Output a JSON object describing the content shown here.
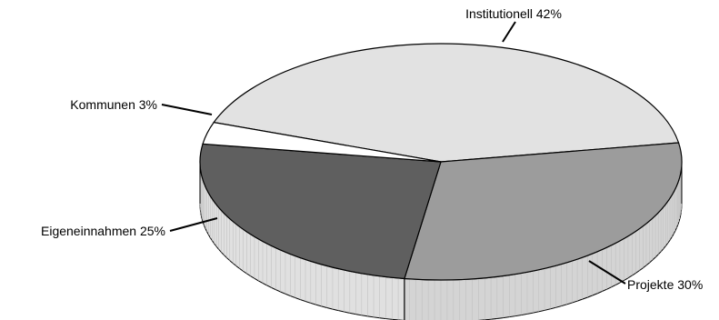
{
  "chart_data": {
    "type": "pie",
    "title": "",
    "three_d": true,
    "slices": [
      {
        "label": "Institutionell 42%",
        "value": 42,
        "color": "#e2e2e2",
        "side_color": "#dedede"
      },
      {
        "label": "Projekte 30%",
        "value": 30,
        "color": "#9c9c9c",
        "side_color": "#d4d4d4"
      },
      {
        "label": "Eigeneinnahmen 25%",
        "value": 25,
        "color": "#5f5f5f",
        "side_color": "#e0e0e0"
      },
      {
        "label": "Kommunen 3%",
        "value": 3,
        "color": "#ffffff",
        "side_color": "#ffffff"
      }
    ]
  }
}
